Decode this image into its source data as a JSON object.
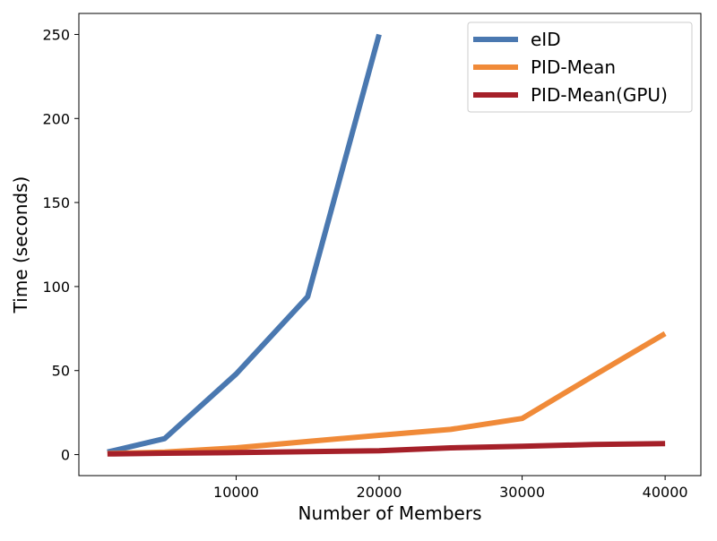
{
  "chart_data": {
    "type": "line",
    "title": "",
    "xlabel": "Number of Members",
    "ylabel": "Time (seconds)",
    "xlim": [
      -1000,
      42500
    ],
    "ylim": [
      -12.5,
      262.5
    ],
    "xticks": [
      10000,
      20000,
      30000,
      40000
    ],
    "yticks": [
      0,
      50,
      100,
      150,
      200,
      250
    ],
    "grid": false,
    "legend_position": "top-right",
    "series": [
      {
        "name": "eID",
        "color": "#4a78b0",
        "x": [
          1000,
          5000,
          10000,
          15000,
          20000
        ],
        "y": [
          1.5,
          9.5,
          48,
          94,
          250
        ]
      },
      {
        "name": "PID-Mean",
        "color": "#f08a38",
        "x": [
          1000,
          5000,
          10000,
          15000,
          20000,
          25000,
          30000,
          35000,
          40000
        ],
        "y": [
          0.6,
          1.5,
          4,
          7.8,
          11.5,
          15,
          21.5,
          47,
          72
        ]
      },
      {
        "name": "PID-Mean(GPU)",
        "color": "#a52029",
        "x": [
          1000,
          5000,
          10000,
          15000,
          20000,
          25000,
          30000,
          35000,
          40000
        ],
        "y": [
          0.4,
          0.8,
          1.2,
          1.8,
          2.3,
          4,
          5,
          6,
          6.5
        ]
      }
    ]
  }
}
